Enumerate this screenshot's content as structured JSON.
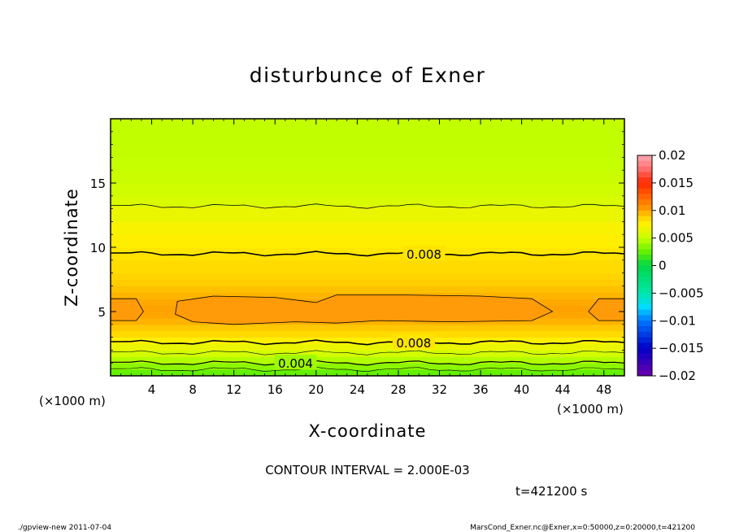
{
  "chart_data": {
    "type": "heatmap",
    "title": "disturbunce of Exner",
    "xlabel": "X-coordinate",
    "ylabel": "Z-coordinate",
    "x_unit": "(×1000 m)",
    "z_unit": "(×1000 m)",
    "xlim": [
      0,
      50
    ],
    "ylim": [
      0,
      20
    ],
    "x_ticks": [
      4,
      8,
      12,
      16,
      20,
      24,
      28,
      32,
      36,
      40,
      44,
      48
    ],
    "y_ticks": [
      5,
      10,
      15
    ],
    "colorbar": {
      "levels": [
        -0.02,
        -0.015,
        -0.01,
        -0.005,
        0,
        0.005,
        0.01,
        0.015,
        0.02
      ],
      "labels": [
        "0.02",
        "0.015",
        "0.01",
        "0.005",
        "0",
        "−0.005",
        "−0.01",
        "−0.015",
        "−0.02"
      ]
    },
    "z_profile": {
      "z": [
        0,
        0.5,
        1.0,
        1.5,
        2.0,
        2.5,
        3.0,
        3.5,
        4.0,
        4.5,
        5.0,
        5.5,
        6.0,
        6.5,
        7.0,
        7.5,
        8.0,
        9.0,
        9.5,
        10.0,
        11.0,
        12.0,
        13.2,
        14.0,
        15.0,
        16.0,
        17.0,
        18.0,
        19.0,
        20.0
      ],
      "value": [
        0.002,
        0.003,
        0.004,
        0.005,
        0.006,
        0.007,
        0.008,
        0.0088,
        0.0094,
        0.0098,
        0.01,
        0.0099,
        0.0097,
        0.0094,
        0.0092,
        0.0088,
        0.0086,
        0.0082,
        0.008,
        0.0078,
        0.0074,
        0.007,
        0.006,
        0.0055,
        0.0052,
        0.005,
        0.0049,
        0.0048,
        0.0048,
        0.0048
      ]
    },
    "contour_labels": [
      {
        "text": "0.008",
        "x": 30.5,
        "z": 9.5
      },
      {
        "text": "0.008",
        "x": 29.5,
        "z": 2.6
      },
      {
        "text": "0.004",
        "x": 18.0,
        "z": 1.0
      }
    ],
    "contour_interval_text": "CONTOUR INTERVAL = 2.000E-03",
    "time_text": "t=421200 s"
  },
  "footer": {
    "left": "./gpview-new  2011-07-04",
    "right": "MarsCond_Exner.nc@Exner,x=0:50000,z=0:20000,t=421200"
  },
  "colors": {
    "background": "#ffffff",
    "high_region": "#ff9a08",
    "top_region": "#99ff00"
  }
}
